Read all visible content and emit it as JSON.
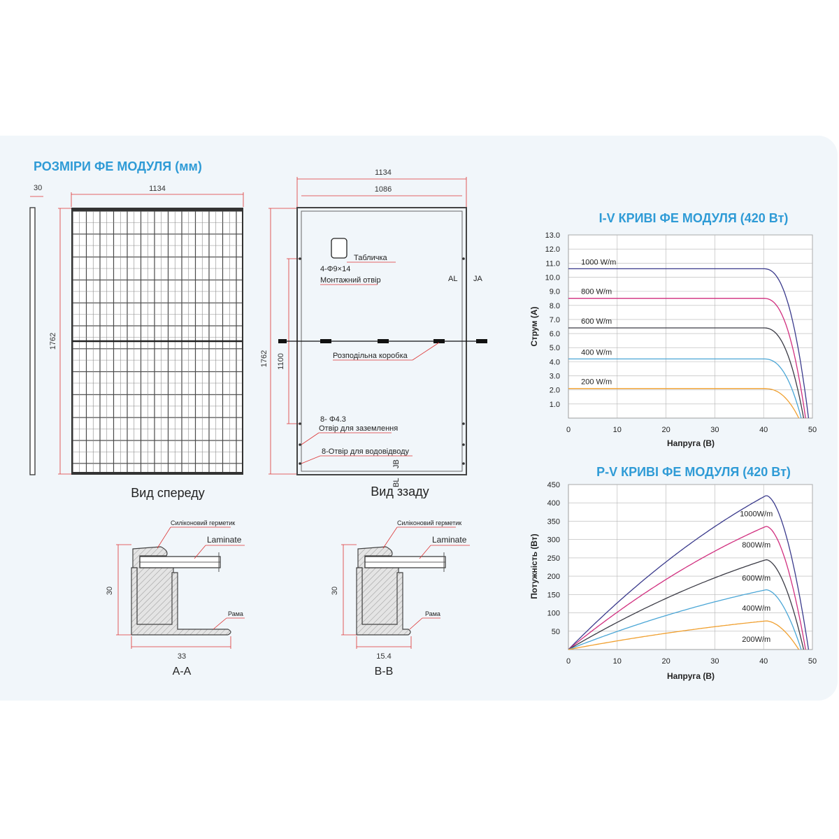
{
  "section_title": "РОЗМІРИ ФЕ МОДУЛЯ (мм)",
  "front_view": {
    "caption": "Вид спереду",
    "thickness": "30",
    "width": "1134",
    "height": "1762"
  },
  "back_view": {
    "caption": "Вид ззаду",
    "width_outer": "1134",
    "width_inner": "1086",
    "height": "1762",
    "hole_spacing": "1100",
    "label_plate": "Табличка",
    "mounting_spec": "4-Φ9×14",
    "mounting_label": "Монтажний отвір",
    "junction_box": "Розподільна коробка",
    "ground_spec": "8- Φ4.3",
    "ground_label": "Отвір для заземлення",
    "drain_label": "8-Отвір для водовідводу",
    "mark_al": "AL",
    "mark_ja": "JA",
    "mark_bl": "BL",
    "mark_jb": "JB"
  },
  "section_aa": {
    "caption": "A-A",
    "sealant": "Силіконовий герметик",
    "laminate": "Laminate",
    "frame": "Рама",
    "height": "30",
    "width": "33"
  },
  "section_bb": {
    "caption": "B-B",
    "sealant": "Силіконовий герметик",
    "laminate": "Laminate",
    "frame": "Рама",
    "height": "30",
    "width": "15.4"
  },
  "chart_data": [
    {
      "type": "line",
      "title": "I-V  КРИВІ ФЕ МОДУЛЯ (420 Вт)",
      "xlabel": "Напруга (В)",
      "ylabel": "Струм (А)",
      "xlim": [
        0,
        50
      ],
      "ylim": [
        0,
        13
      ],
      "xticks": [
        "0",
        "10",
        "20",
        "30",
        "40",
        "50"
      ],
      "yticks": [
        "1.0",
        "2.0",
        "3.0",
        "4.0",
        "5.0",
        "6.0",
        "7.0",
        "8.0",
        "9.0",
        "10.0",
        "11.0",
        "12.0",
        "13.0"
      ],
      "grid": true,
      "series": [
        {
          "name": "1000 W/m",
          "color": "#3a3a8c",
          "isc": 10.6,
          "voc": 49.2,
          "knee": 40
        },
        {
          "name": "800 W/m",
          "color": "#d12f7f",
          "isc": 8.5,
          "voc": 48.6,
          "knee": 40
        },
        {
          "name": "600 W/m",
          "color": "#3b3b45",
          "isc": 6.4,
          "voc": 48.2,
          "knee": 40
        },
        {
          "name": "400 W/m",
          "color": "#4aa6d6",
          "isc": 4.2,
          "voc": 47.7,
          "knee": 40
        },
        {
          "name": "200 W/m",
          "color": "#f0a030",
          "isc": 2.1,
          "voc": 47.2,
          "knee": 40
        }
      ]
    },
    {
      "type": "line",
      "title": "P-V КРИВІ ФЕ МОДУЛЯ (420 Вт)",
      "xlabel": "Напруга (В)",
      "ylabel": "Потужність (Вт)",
      "xlim": [
        0,
        50
      ],
      "ylim": [
        0,
        450
      ],
      "xticks": [
        "0",
        "10",
        "20",
        "30",
        "40",
        "50"
      ],
      "yticks": [
        "50",
        "100",
        "150",
        "200",
        "250",
        "300",
        "350",
        "400",
        "450"
      ],
      "grid": true,
      "series": [
        {
          "name": "1000W/m",
          "color": "#3a3a8c",
          "pmax": 420,
          "vmp": 40.5,
          "voc": 49.2
        },
        {
          "name": "800W/m",
          "color": "#d12f7f",
          "pmax": 336,
          "vmp": 40.5,
          "voc": 48.6
        },
        {
          "name": "600W/m",
          "color": "#3b3b45",
          "pmax": 245,
          "vmp": 40.5,
          "voc": 48.2
        },
        {
          "name": "400W/m",
          "color": "#4aa6d6",
          "pmax": 163,
          "vmp": 40.5,
          "voc": 47.7
        },
        {
          "name": "200W/m",
          "color": "#f0a030",
          "pmax": 78,
          "vmp": 40.5,
          "voc": 47.2
        }
      ]
    }
  ]
}
